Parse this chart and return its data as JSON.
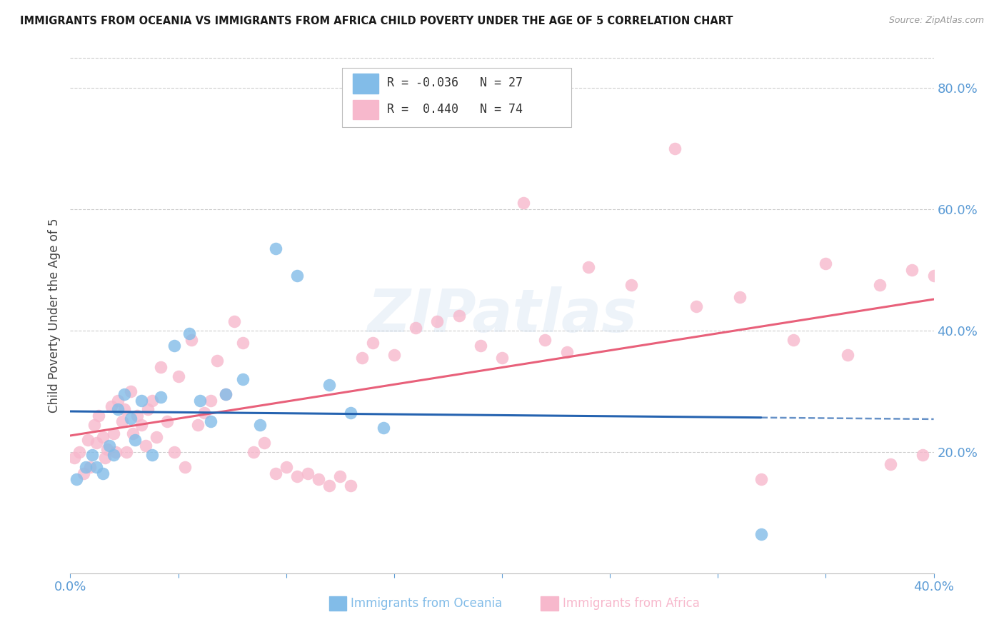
{
  "title": "IMMIGRANTS FROM OCEANIA VS IMMIGRANTS FROM AFRICA CHILD POVERTY UNDER THE AGE OF 5 CORRELATION CHART",
  "source": "Source: ZipAtlas.com",
  "ylabel": "Child Poverty Under the Age of 5",
  "x_min": 0.0,
  "x_max": 0.4,
  "y_min": 0.0,
  "y_max": 0.85,
  "x_ticks": [
    0.0,
    0.05,
    0.1,
    0.15,
    0.2,
    0.25,
    0.3,
    0.35,
    0.4
  ],
  "y_ticks_right": [
    0.2,
    0.4,
    0.6,
    0.8
  ],
  "y_tick_labels_right": [
    "20.0%",
    "40.0%",
    "60.0%",
    "80.0%"
  ],
  "legend_r1": "R = -0.036",
  "legend_n1": "N = 27",
  "legend_r2": "R =  0.440",
  "legend_n2": "N = 74",
  "color_oceania": "#82bce8",
  "color_africa": "#f7b8cc",
  "color_oceania_line": "#2563b0",
  "color_africa_line": "#e8607a",
  "color_axis_labels": "#5b9bd5",
  "watermark": "ZIPatlas",
  "oceania_x": [
    0.003,
    0.007,
    0.01,
    0.012,
    0.015,
    0.018,
    0.02,
    0.022,
    0.025,
    0.028,
    0.03,
    0.033,
    0.038,
    0.042,
    0.048,
    0.055,
    0.06,
    0.065,
    0.072,
    0.08,
    0.088,
    0.095,
    0.105,
    0.12,
    0.13,
    0.145,
    0.32
  ],
  "oceania_y": [
    0.155,
    0.175,
    0.195,
    0.175,
    0.165,
    0.21,
    0.195,
    0.27,
    0.295,
    0.255,
    0.22,
    0.285,
    0.195,
    0.29,
    0.375,
    0.395,
    0.285,
    0.25,
    0.295,
    0.32,
    0.245,
    0.535,
    0.49,
    0.31,
    0.265,
    0.24,
    0.065
  ],
  "africa_x": [
    0.002,
    0.004,
    0.006,
    0.008,
    0.009,
    0.011,
    0.012,
    0.013,
    0.015,
    0.016,
    0.017,
    0.019,
    0.02,
    0.021,
    0.022,
    0.024,
    0.025,
    0.026,
    0.028,
    0.029,
    0.031,
    0.033,
    0.035,
    0.036,
    0.038,
    0.04,
    0.042,
    0.045,
    0.048,
    0.05,
    0.053,
    0.056,
    0.059,
    0.062,
    0.065,
    0.068,
    0.072,
    0.076,
    0.08,
    0.085,
    0.09,
    0.095,
    0.1,
    0.105,
    0.11,
    0.115,
    0.12,
    0.125,
    0.13,
    0.135,
    0.14,
    0.15,
    0.16,
    0.17,
    0.18,
    0.19,
    0.2,
    0.21,
    0.22,
    0.23,
    0.24,
    0.26,
    0.28,
    0.29,
    0.31,
    0.32,
    0.335,
    0.35,
    0.36,
    0.375,
    0.38,
    0.39,
    0.395,
    0.4
  ],
  "africa_y": [
    0.19,
    0.2,
    0.165,
    0.22,
    0.175,
    0.245,
    0.215,
    0.26,
    0.225,
    0.19,
    0.205,
    0.275,
    0.23,
    0.2,
    0.285,
    0.25,
    0.27,
    0.2,
    0.3,
    0.23,
    0.26,
    0.245,
    0.21,
    0.27,
    0.285,
    0.225,
    0.34,
    0.25,
    0.2,
    0.325,
    0.175,
    0.385,
    0.245,
    0.265,
    0.285,
    0.35,
    0.295,
    0.415,
    0.38,
    0.2,
    0.215,
    0.165,
    0.175,
    0.16,
    0.165,
    0.155,
    0.145,
    0.16,
    0.145,
    0.355,
    0.38,
    0.36,
    0.405,
    0.415,
    0.425,
    0.375,
    0.355,
    0.61,
    0.385,
    0.365,
    0.505,
    0.475,
    0.7,
    0.44,
    0.455,
    0.155,
    0.385,
    0.51,
    0.36,
    0.475,
    0.18,
    0.5,
    0.195,
    0.49
  ]
}
